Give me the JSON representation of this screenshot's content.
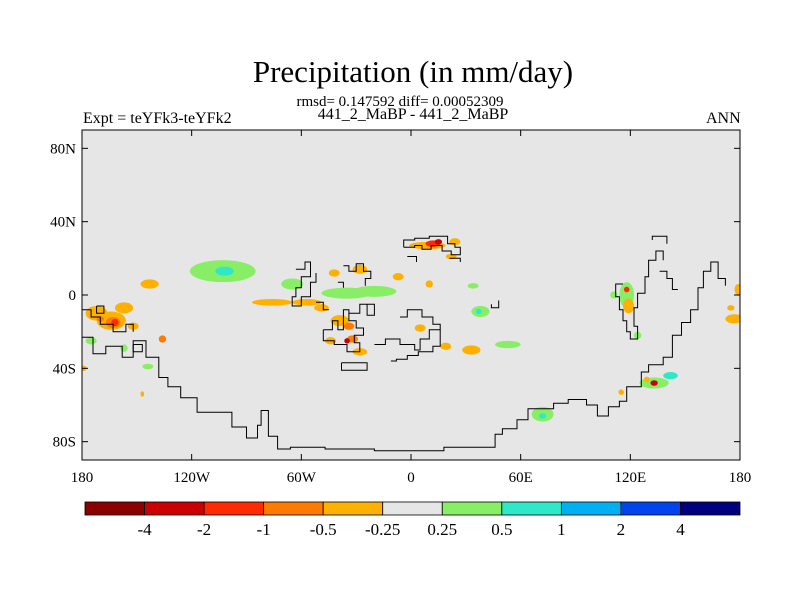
{
  "title": "Precipitation (in mm/day)",
  "stats_line": "rmsd= 0.147592 diff= 0.00052309",
  "case_line": "441_2_MaBP - 441_2_MaBP",
  "expt_label": "Expt = teYFk3-teYFk2",
  "season": "ANN",
  "y_ticks": [
    {
      "label": "80N",
      "lat": 80
    },
    {
      "label": "40N",
      "lat": 40
    },
    {
      "label": "0",
      "lat": 0
    },
    {
      "label": "40S",
      "lat": -40
    },
    {
      "label": "80S",
      "lat": -80
    }
  ],
  "x_ticks": [
    {
      "label": "180",
      "lon": -180
    },
    {
      "label": "120W",
      "lon": -120
    },
    {
      "label": "60W",
      "lon": -60
    },
    {
      "label": "0",
      "lon": 0
    },
    {
      "label": "60E",
      "lon": 60
    },
    {
      "label": "120E",
      "lon": 120
    },
    {
      "label": "180",
      "lon": 180
    }
  ],
  "map": {
    "lon_range": [
      -180,
      180
    ],
    "lat_range": [
      -90,
      90
    ],
    "background_color": "#e6e6e6",
    "contour_color": "#000000"
  },
  "colorbar": {
    "colors": [
      "#8b0000",
      "#cc0000",
      "#ff2a00",
      "#ff7a00",
      "#ffb000",
      "#e6e6e6",
      "#88ee66",
      "#2ee8c8",
      "#00b0f0",
      "#0044ee",
      "#000080"
    ],
    "labels": [
      "-4",
      "-2",
      "-1",
      "-0.5",
      "-0.25",
      "0.25",
      "0.5",
      "1",
      "2",
      "4"
    ]
  },
  "anomaly_patches": [
    {
      "lon": -103,
      "lat": 13,
      "rx": 18,
      "ry": 6,
      "color": "#88ee66"
    },
    {
      "lon": -102,
      "lat": 13,
      "rx": 5,
      "ry": 2.5,
      "color": "#2ee8c8"
    },
    {
      "lon": -35,
      "lat": 1,
      "rx": 14,
      "ry": 3,
      "color": "#88ee66"
    },
    {
      "lon": -20,
      "lat": 2,
      "rx": 12,
      "ry": 3,
      "color": "#88ee66"
    },
    {
      "lon": -65,
      "lat": 6,
      "rx": 6,
      "ry": 3,
      "color": "#88ee66"
    },
    {
      "lon": -143,
      "lat": 6,
      "rx": 5,
      "ry": 2.5,
      "color": "#ffb000"
    },
    {
      "lon": -76,
      "lat": -4,
      "rx": 11,
      "ry": 1.8,
      "color": "#ffb000"
    },
    {
      "lon": -57,
      "lat": -4,
      "rx": 8,
      "ry": 1.8,
      "color": "#ffb000"
    },
    {
      "lon": -157,
      "lat": -7,
      "rx": 5,
      "ry": 3,
      "color": "#ffb000"
    },
    {
      "lon": -164,
      "lat": -14,
      "rx": 8,
      "ry": 5,
      "color": "#ffb000"
    },
    {
      "lon": -163,
      "lat": -15,
      "rx": 4,
      "ry": 3,
      "color": "#ff7a00"
    },
    {
      "lon": -162,
      "lat": -15,
      "rx": 2,
      "ry": 2,
      "color": "#ff2a00"
    },
    {
      "lon": -172,
      "lat": -10,
      "rx": 6,
      "ry": 4,
      "color": "#ffb000"
    },
    {
      "lon": -170,
      "lat": -13,
      "rx": 2,
      "ry": 1.5,
      "color": "#ff7a00"
    },
    {
      "lon": -152,
      "lat": -17,
      "rx": 3,
      "ry": 2,
      "color": "#ffb000"
    },
    {
      "lon": -175,
      "lat": -25,
      "rx": 3,
      "ry": 2,
      "color": "#88ee66"
    },
    {
      "lon": -157,
      "lat": -29,
      "rx": 2,
      "ry": 2,
      "color": "#88ee66"
    },
    {
      "lon": -136,
      "lat": -24,
      "rx": 2,
      "ry": 2,
      "color": "#ff7a00"
    },
    {
      "lon": -144,
      "lat": -39,
      "rx": 3,
      "ry": 1.5,
      "color": "#88ee66"
    },
    {
      "lon": -179,
      "lat": -40,
      "rx": 1.5,
      "ry": 1.5,
      "color": "#ffb000"
    },
    {
      "lon": -147,
      "lat": -54,
      "rx": 1,
      "ry": 1.5,
      "color": "#ffb000"
    },
    {
      "lon": -49,
      "lat": -7,
      "rx": 4,
      "ry": 2,
      "color": "#ffb000"
    },
    {
      "lon": -39,
      "lat": -14,
      "rx": 5,
      "ry": 3,
      "color": "#ffb000"
    },
    {
      "lon": -34,
      "lat": -17,
      "rx": 3,
      "ry": 2,
      "color": "#ff7a00"
    },
    {
      "lon": -32,
      "lat": -24,
      "rx": 3,
      "ry": 2,
      "color": "#ff7a00"
    },
    {
      "lon": -35,
      "lat": -25,
      "rx": 1.5,
      "ry": 1.5,
      "color": "#cc0000"
    },
    {
      "lon": -44,
      "lat": -25,
      "rx": 3,
      "ry": 2,
      "color": "#ffb000"
    },
    {
      "lon": -28,
      "lat": -31,
      "rx": 4,
      "ry": 2,
      "color": "#ffb000"
    },
    {
      "lon": 9,
      "lat": 27,
      "rx": 10,
      "ry": 2,
      "color": "#ffb000"
    },
    {
      "lon": 12,
      "lat": 28,
      "rx": 4,
      "ry": 1.8,
      "color": "#ff2a00"
    },
    {
      "lon": 15,
      "lat": 29,
      "rx": 2,
      "ry": 1.5,
      "color": "#cc0000"
    },
    {
      "lon": 24,
      "lat": 29,
      "rx": 3,
      "ry": 2,
      "color": "#ffb000"
    },
    {
      "lon": 22,
      "lat": 21,
      "rx": 3,
      "ry": 1.5,
      "color": "#ffb000"
    },
    {
      "lon": -28,
      "lat": 14,
      "rx": 4,
      "ry": 2.5,
      "color": "#ffb000"
    },
    {
      "lon": -42,
      "lat": 12,
      "rx": 3,
      "ry": 2,
      "color": "#ffb000"
    },
    {
      "lon": -7,
      "lat": 10,
      "rx": 3,
      "ry": 2,
      "color": "#ffb000"
    },
    {
      "lon": 10,
      "lat": 6,
      "rx": 2,
      "ry": 2,
      "color": "#ffb000"
    },
    {
      "lon": 34,
      "lat": 5,
      "rx": 3,
      "ry": 1.5,
      "color": "#88ee66"
    },
    {
      "lon": 5,
      "lat": -18,
      "rx": 3,
      "ry": 2,
      "color": "#ffb000"
    },
    {
      "lon": 19,
      "lat": -28,
      "rx": 3,
      "ry": 2,
      "color": "#ffb000"
    },
    {
      "lon": 33,
      "lat": -30,
      "rx": 5,
      "ry": 2.5,
      "color": "#ffb000"
    },
    {
      "lon": 53,
      "lat": -27,
      "rx": 7,
      "ry": 2,
      "color": "#88ee66"
    },
    {
      "lon": 38,
      "lat": -9,
      "rx": 5,
      "ry": 3,
      "color": "#88ee66"
    },
    {
      "lon": 37,
      "lat": -9,
      "rx": 1.5,
      "ry": 1.5,
      "color": "#2ee8c8"
    },
    {
      "lon": 118,
      "lat": 0,
      "rx": 4,
      "ry": 7,
      "color": "#88ee66"
    },
    {
      "lon": 119,
      "lat": -6,
      "rx": 3,
      "ry": 4,
      "color": "#ffb000"
    },
    {
      "lon": 118,
      "lat": 3,
      "rx": 1.5,
      "ry": 1.5,
      "color": "#ff2a00"
    },
    {
      "lon": 111,
      "lat": 0,
      "rx": 2,
      "ry": 2,
      "color": "#88ee66"
    },
    {
      "lon": 124,
      "lat": -22,
      "rx": 2,
      "ry": 2,
      "color": "#88ee66"
    },
    {
      "lon": 177,
      "lat": -13,
      "rx": 5,
      "ry": 2.5,
      "color": "#ffb000"
    },
    {
      "lon": 179,
      "lat": 3,
      "rx": 2,
      "ry": 3,
      "color": "#ffb000"
    },
    {
      "lon": 175,
      "lat": -7,
      "rx": 2,
      "ry": 1.5,
      "color": "#ffb000"
    },
    {
      "lon": 133,
      "lat": -48,
      "rx": 8,
      "ry": 3,
      "color": "#88ee66"
    },
    {
      "lon": 133,
      "lat": -48,
      "rx": 2,
      "ry": 1.5,
      "color": "#cc0000"
    },
    {
      "lon": 129,
      "lat": -46,
      "rx": 1.5,
      "ry": 1.5,
      "color": "#ffb000"
    },
    {
      "lon": 142,
      "lat": -44,
      "rx": 4,
      "ry": 2,
      "color": "#2ee8c8"
    },
    {
      "lon": 115,
      "lat": -53,
      "rx": 1.5,
      "ry": 1.5,
      "color": "#ffb000"
    },
    {
      "lon": 72,
      "lat": -65,
      "rx": 6,
      "ry": 4,
      "color": "#88ee66"
    },
    {
      "lon": 72,
      "lat": -66,
      "rx": 2,
      "ry": 1.5,
      "color": "#2ee8c8"
    }
  ],
  "coastlines": [
    [
      [
        -180,
        -23
      ],
      [
        -174,
        -23
      ],
      [
        -174,
        -32
      ],
      [
        -167,
        -32
      ],
      [
        -167,
        -28
      ],
      [
        -158,
        -28
      ],
      [
        -158,
        -34
      ],
      [
        -152,
        -34
      ],
      [
        -152,
        -25
      ],
      [
        -145,
        -25
      ],
      [
        -145,
        -34
      ],
      [
        -138,
        -34
      ],
      [
        -138,
        -45
      ],
      [
        -133,
        -45
      ],
      [
        -133,
        -50
      ],
      [
        -126,
        -50
      ],
      [
        -126,
        -56
      ],
      [
        -117,
        -56
      ],
      [
        -117,
        -64
      ],
      [
        -98,
        -64
      ],
      [
        -98,
        -72
      ],
      [
        -90,
        -72
      ],
      [
        -90,
        -78
      ],
      [
        -84,
        -78
      ],
      [
        -84,
        -71
      ],
      [
        -82,
        -71
      ],
      [
        -82,
        -63
      ],
      [
        -78,
        -63
      ],
      [
        -78,
        -77
      ],
      [
        -73,
        -77
      ],
      [
        -73,
        -84
      ],
      [
        -66,
        -84
      ],
      [
        -66,
        -83
      ],
      [
        -47,
        -83
      ],
      [
        -47,
        -84
      ],
      [
        -20,
        -84
      ],
      [
        -20,
        -85
      ],
      [
        18,
        -85
      ],
      [
        18,
        -83
      ],
      [
        46,
        -83
      ],
      [
        46,
        -76
      ],
      [
        50,
        -76
      ],
      [
        50,
        -73
      ],
      [
        58,
        -73
      ],
      [
        58,
        -68
      ],
      [
        64,
        -68
      ],
      [
        64,
        -62
      ],
      [
        78,
        -62
      ],
      [
        78,
        -59
      ],
      [
        86,
        -59
      ],
      [
        86,
        -57
      ],
      [
        96,
        -57
      ],
      [
        96,
        -60
      ],
      [
        102,
        -60
      ],
      [
        102,
        -66
      ],
      [
        108,
        -66
      ],
      [
        108,
        -61
      ],
      [
        114,
        -61
      ],
      [
        114,
        -58
      ],
      [
        118,
        -58
      ],
      [
        118,
        -50
      ],
      [
        126,
        -50
      ],
      [
        126,
        -42
      ],
      [
        130,
        -42
      ],
      [
        130,
        -38
      ],
      [
        138,
        -38
      ],
      [
        138,
        -34
      ],
      [
        143,
        -34
      ],
      [
        143,
        -22
      ],
      [
        148,
        -22
      ],
      [
        148,
        -15
      ],
      [
        153,
        -15
      ],
      [
        153,
        -8
      ],
      [
        157,
        -8
      ],
      [
        157,
        4
      ],
      [
        160,
        4
      ],
      [
        160,
        13
      ],
      [
        164,
        13
      ],
      [
        164,
        18
      ],
      [
        168,
        18
      ],
      [
        168,
        9
      ],
      [
        172,
        9
      ],
      [
        172,
        5
      ]
    ],
    [
      [
        -180,
        -8
      ],
      [
        -175,
        -8
      ],
      [
        -175,
        -12
      ],
      [
        -170,
        -12
      ],
      [
        -170,
        -16
      ],
      [
        -163,
        -16
      ],
      [
        -163,
        -20
      ],
      [
        -156,
        -20
      ],
      [
        -156,
        -16
      ],
      [
        -152,
        -16
      ],
      [
        -152,
        -20
      ]
    ],
    [
      [
        -172,
        -6
      ],
      [
        -168,
        -6
      ],
      [
        -168,
        -10
      ],
      [
        -172,
        -10
      ],
      [
        -172,
        -6
      ]
    ],
    [
      [
        -152,
        -27
      ],
      [
        -147,
        -27
      ],
      [
        -147,
        -31
      ],
      [
        -152,
        -31
      ],
      [
        -152,
        -27
      ]
    ],
    [
      [
        -63,
        14
      ],
      [
        -58,
        14
      ],
      [
        -58,
        18
      ],
      [
        -55,
        18
      ],
      [
        -55,
        10
      ],
      [
        -60,
        10
      ],
      [
        -60,
        4
      ],
      [
        -63,
        4
      ],
      [
        -63,
        -1
      ],
      [
        -65,
        -1
      ],
      [
        -65,
        -6
      ],
      [
        -60,
        -6
      ],
      [
        -60,
        -1
      ],
      [
        -55,
        -1
      ],
      [
        -55,
        7
      ],
      [
        -52,
        7
      ],
      [
        -52,
        12
      ]
    ],
    [
      [
        -37,
        16
      ],
      [
        -34,
        16
      ],
      [
        -34,
        13
      ],
      [
        -30,
        13
      ],
      [
        -30,
        17
      ],
      [
        -26,
        17
      ],
      [
        -26,
        13
      ],
      [
        -22,
        13
      ],
      [
        -22,
        9
      ],
      [
        -25,
        9
      ],
      [
        -25,
        5
      ]
    ],
    [
      [
        -40,
        7
      ],
      [
        -37,
        7
      ],
      [
        -37,
        4
      ]
    ],
    [
      [
        -52,
        -4
      ],
      [
        -48,
        -4
      ],
      [
        -48,
        -8
      ],
      [
        -45,
        -8
      ]
    ],
    [
      [
        -48,
        -19
      ],
      [
        -43,
        -19
      ],
      [
        -43,
        -14
      ],
      [
        -40,
        -14
      ],
      [
        -40,
        -19
      ],
      [
        -37,
        -19
      ],
      [
        -37,
        -8
      ],
      [
        -34,
        -8
      ],
      [
        -34,
        -14
      ],
      [
        -30,
        -14
      ],
      [
        -30,
        -18
      ],
      [
        -26,
        -18
      ],
      [
        -26,
        -22
      ],
      [
        -31,
        -22
      ],
      [
        -31,
        -26
      ],
      [
        -28,
        -26
      ],
      [
        -28,
        -31
      ],
      [
        -35,
        -31
      ],
      [
        -35,
        -27
      ],
      [
        -42,
        -27
      ],
      [
        -42,
        -25
      ],
      [
        -48,
        -25
      ],
      [
        -48,
        -19
      ]
    ],
    [
      [
        -38,
        -37
      ],
      [
        -38,
        -41
      ],
      [
        -24,
        -41
      ],
      [
        -24,
        -37
      ],
      [
        -38,
        -37
      ]
    ],
    [
      [
        -34,
        -10
      ],
      [
        -28,
        -10
      ],
      [
        -28,
        -5
      ],
      [
        -24,
        -5
      ],
      [
        -24,
        -11
      ],
      [
        -20,
        -11
      ],
      [
        -20,
        -5
      ],
      [
        -25,
        -5
      ]
    ],
    [
      [
        -20,
        -27
      ],
      [
        -14,
        -27
      ],
      [
        -14,
        -24
      ],
      [
        -6,
        -24
      ],
      [
        -6,
        -27
      ],
      [
        2,
        -27
      ],
      [
        2,
        -30
      ],
      [
        5,
        -30
      ],
      [
        5,
        -24
      ],
      [
        10,
        -24
      ],
      [
        10,
        -19
      ],
      [
        16,
        -19
      ],
      [
        16,
        -28
      ],
      [
        12,
        -28
      ],
      [
        12,
        -31
      ],
      [
        4,
        -31
      ],
      [
        4,
        -33
      ],
      [
        -2,
        -33
      ],
      [
        -2,
        -35
      ],
      [
        -8,
        -35
      ],
      [
        -8,
        -36
      ],
      [
        -11,
        -36
      ]
    ],
    [
      [
        -6,
        -12
      ],
      [
        -2,
        -12
      ],
      [
        -2,
        -8
      ],
      [
        6,
        -8
      ],
      [
        6,
        -12
      ],
      [
        12,
        -12
      ],
      [
        12,
        -16
      ],
      [
        16,
        -16
      ],
      [
        16,
        -19
      ]
    ],
    [
      [
        -4,
        26
      ],
      [
        -4,
        30
      ],
      [
        2,
        30
      ],
      [
        2,
        31
      ],
      [
        10,
        31
      ],
      [
        10,
        32
      ],
      [
        20,
        32
      ],
      [
        20,
        28
      ],
      [
        24,
        28
      ],
      [
        24,
        26
      ],
      [
        27,
        26
      ],
      [
        27,
        22
      ],
      [
        22,
        22
      ],
      [
        22,
        24
      ],
      [
        17,
        24
      ],
      [
        17,
        27
      ],
      [
        11,
        27
      ],
      [
        11,
        25
      ],
      [
        6,
        25
      ],
      [
        6,
        27
      ],
      [
        2,
        27
      ],
      [
        2,
        26
      ],
      [
        -4,
        26
      ]
    ],
    [
      [
        -2,
        21
      ],
      [
        3,
        21
      ],
      [
        3,
        18
      ]
    ],
    [
      [
        21,
        20
      ],
      [
        27,
        20
      ],
      [
        27,
        18
      ]
    ],
    [
      [
        44,
        -5
      ],
      [
        44,
        -7
      ],
      [
        48,
        -7
      ],
      [
        48,
        -3
      ]
    ],
    [
      [
        116,
        6
      ],
      [
        112,
        6
      ],
      [
        112,
        -1
      ],
      [
        114,
        -1
      ],
      [
        114,
        -8
      ],
      [
        116,
        -8
      ],
      [
        116,
        -14
      ],
      [
        118,
        -14
      ],
      [
        118,
        -20
      ],
      [
        120,
        -20
      ],
      [
        120,
        -24
      ],
      [
        124,
        -24
      ],
      [
        124,
        -17
      ],
      [
        122,
        -17
      ],
      [
        122,
        -7
      ],
      [
        124,
        -7
      ],
      [
        124,
        1
      ],
      [
        128,
        1
      ],
      [
        128,
        10
      ],
      [
        130,
        10
      ],
      [
        130,
        19
      ],
      [
        134,
        19
      ],
      [
        134,
        24
      ],
      [
        138,
        24
      ],
      [
        138,
        19
      ]
    ],
    [
      [
        132,
        30
      ],
      [
        132,
        32
      ],
      [
        140,
        32
      ],
      [
        140,
        28
      ]
    ],
    [
      [
        136,
        13
      ],
      [
        140,
        13
      ],
      [
        140,
        9
      ],
      [
        143,
        9
      ],
      [
        143,
        3
      ],
      [
        146,
        3
      ]
    ]
  ]
}
